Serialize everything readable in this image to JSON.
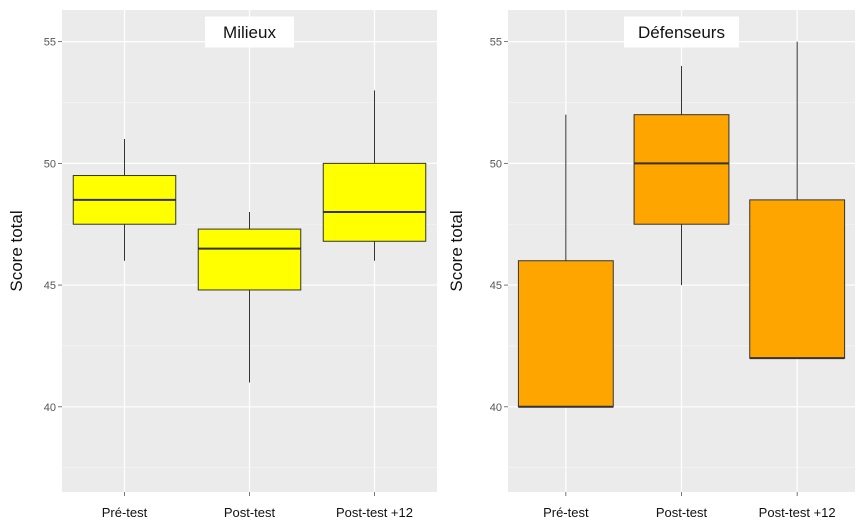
{
  "chart_data": [
    {
      "type": "box",
      "title": "Milieux",
      "ylabel": "Score total",
      "xlabel": "",
      "ylim": [
        36.5,
        56.3
      ],
      "yticks": [
        40,
        45,
        50,
        55
      ],
      "grid": true,
      "fill": "#ffff00",
      "categories": [
        "Pré-test",
        "Post-test",
        "Post-test +12"
      ],
      "boxes": [
        {
          "category": "Pré-test",
          "min": 46,
          "q1": 47.5,
          "median": 48.5,
          "q3": 49.5,
          "max": 51
        },
        {
          "category": "Post-test",
          "min": 41,
          "q1": 44.8,
          "median": 46.5,
          "q3": 47.3,
          "max": 48
        },
        {
          "category": "Post-test +12",
          "min": 46,
          "q1": 46.8,
          "median": 48,
          "q3": 50,
          "max": 53
        }
      ]
    },
    {
      "type": "box",
      "title": "Défenseurs",
      "ylabel": "Score total",
      "xlabel": "",
      "ylim": [
        36.5,
        56.3
      ],
      "yticks": [
        40,
        45,
        50,
        55
      ],
      "grid": true,
      "fill": "#ffa500",
      "categories": [
        "Pré-test",
        "Post-test",
        "Post-test +12"
      ],
      "boxes": [
        {
          "category": "Pré-test",
          "min": 40,
          "q1": 40,
          "median": 40,
          "q3": 46,
          "max": 52
        },
        {
          "category": "Post-test",
          "min": 45,
          "q1": 47.5,
          "median": 50,
          "q3": 52,
          "max": 54
        },
        {
          "category": "Post-test +12",
          "min": 42,
          "q1": 42,
          "median": 42,
          "q3": 48.5,
          "max": 55
        }
      ]
    }
  ]
}
